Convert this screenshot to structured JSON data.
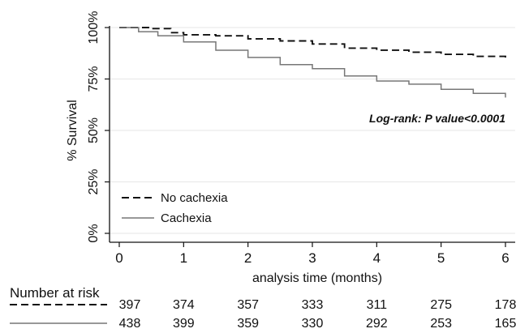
{
  "chart_data": {
    "type": "line",
    "title": "",
    "xlabel": "analysis time (months)",
    "ylabel": "% Survival",
    "xlim": [
      0,
      6
    ],
    "ylim": [
      0,
      100
    ],
    "x_ticks": [
      "0",
      "1",
      "2",
      "3",
      "4",
      "5",
      "6"
    ],
    "y_ticks": [
      "0%",
      "25%",
      "50%",
      "75%",
      "100%"
    ],
    "grid": "horizontal",
    "legend_position": "bottom-left",
    "annotation": "Log-rank: P value<0.0001",
    "series": [
      {
        "name": "No cachexia",
        "line_style": "dashed",
        "color": "#111111",
        "points": [
          [
            0,
            100
          ],
          [
            0.5,
            99.5
          ],
          [
            0.8,
            97.5
          ],
          [
            1,
            96.5
          ],
          [
            1.5,
            96
          ],
          [
            2,
            94.5
          ],
          [
            2.5,
            93.5
          ],
          [
            3,
            92
          ],
          [
            3.5,
            90
          ],
          [
            4,
            89
          ],
          [
            4.5,
            88
          ],
          [
            5,
            87
          ],
          [
            5.5,
            86
          ],
          [
            6,
            84.5
          ]
        ]
      },
      {
        "name": "Cachexia",
        "line_style": "solid",
        "color": "#777777",
        "points": [
          [
            0,
            100
          ],
          [
            0.3,
            98
          ],
          [
            0.6,
            96
          ],
          [
            1,
            93
          ],
          [
            1.5,
            89
          ],
          [
            2,
            85.5
          ],
          [
            2.5,
            82
          ],
          [
            3,
            80
          ],
          [
            3.5,
            76.5
          ],
          [
            4,
            74
          ],
          [
            4.5,
            72.5
          ],
          [
            5,
            70
          ],
          [
            5.5,
            68
          ],
          [
            6,
            66
          ]
        ]
      }
    ],
    "risk_table": {
      "label": "Number at risk",
      "rows": [
        {
          "series": "No cachexia",
          "values": [
            "397",
            "374",
            "357",
            "333",
            "311",
            "275",
            "178"
          ]
        },
        {
          "series": "Cachexia",
          "values": [
            "438",
            "399",
            "359",
            "330",
            "292",
            "253",
            "165"
          ]
        }
      ]
    }
  }
}
